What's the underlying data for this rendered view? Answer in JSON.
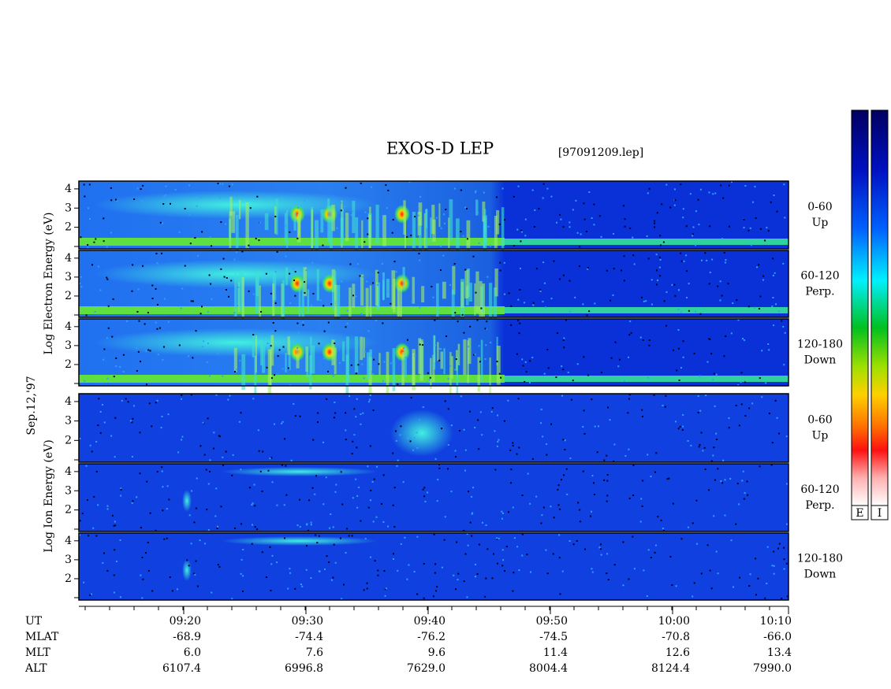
{
  "header": {
    "title": "EXOS-D LEP",
    "file": "[97091209.lep]"
  },
  "date": "Sep.12,'97",
  "electron_axis": "Log Electron Energy (eV)",
  "ion_axis": "Log Ion Energy (eV)",
  "yticks": [
    2,
    3,
    4
  ],
  "pitch_angles": [
    {
      "range": "0-60",
      "dir": "Up"
    },
    {
      "range": "60-120",
      "dir": "Perp."
    },
    {
      "range": "120-180",
      "dir": "Down"
    }
  ],
  "colorbar_labels": [
    "E",
    "I"
  ],
  "orbit": {
    "rows": [
      [
        "UT",
        "09:20",
        "09:30",
        "09:40",
        "09:50",
        "10:00",
        "10:10"
      ],
      [
        "MLAT",
        "-68.9",
        "-74.4",
        "-76.2",
        "-74.5",
        "-70.8",
        "-66.0"
      ],
      [
        "MLT",
        "6.0",
        "7.6",
        "9.6",
        "11.4",
        "12.6",
        "13.4"
      ],
      [
        "ALT",
        "6107.4",
        "6996.8",
        "7629.0",
        "8004.4",
        "8124.4",
        "7990.0"
      ]
    ]
  }
}
